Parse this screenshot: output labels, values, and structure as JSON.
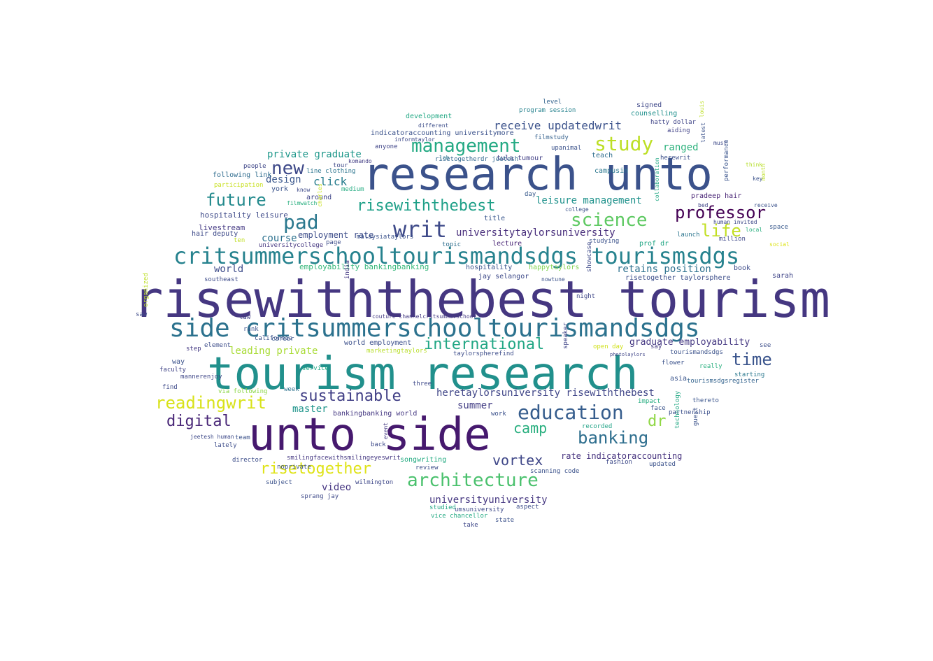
{
  "words": [
    {
      "text": "risewiththebest tourism",
      "size": 72,
      "color": "#453781",
      "vertical": false
    },
    {
      "text": "tourism research",
      "size": 64,
      "color": "#21908c",
      "vertical": false
    },
    {
      "text": "unto side",
      "size": 64,
      "color": "#46196e",
      "vertical": false
    },
    {
      "text": "research unto",
      "size": 64,
      "color": "#3b528b",
      "vertical": false
    },
    {
      "text": "side critsummerschooltourismandsdgs",
      "size": 36,
      "color": "#2c728e",
      "vertical": false
    },
    {
      "text": "critsummerschooltourismandsdgs tourismsdgs",
      "size": 32,
      "color": "#26828e",
      "vertical": false
    },
    {
      "text": "writ",
      "size": 32,
      "color": "#3e4a89",
      "vertical": false
    },
    {
      "text": "management",
      "size": 26,
      "color": "#23a983",
      "vertical": false
    },
    {
      "text": "study",
      "size": 28,
      "color": "#bddf26",
      "vertical": false
    },
    {
      "text": "new",
      "size": 26,
      "color": "#3e4989",
      "vertical": false
    },
    {
      "text": "pad",
      "size": 28,
      "color": "#2a788e",
      "vertical": false
    },
    {
      "text": "future",
      "size": 24,
      "color": "#238a8d",
      "vertical": false
    },
    {
      "text": "risewiththebest",
      "size": 22,
      "color": "#1fa088",
      "vertical": false
    },
    {
      "text": "science",
      "size": 26,
      "color": "#5ec962",
      "vertical": false
    },
    {
      "text": "professor",
      "size": 24,
      "color": "#440154",
      "vertical": false
    },
    {
      "text": "life",
      "size": 24,
      "color": "#c2df23",
      "vertical": false
    },
    {
      "text": "education",
      "size": 28,
      "color": "#365d8d",
      "vertical": false
    },
    {
      "text": "sustainable",
      "size": 22,
      "color": "#424086",
      "vertical": false
    },
    {
      "text": "readingwrit",
      "size": 24,
      "color": "#d8e219",
      "vertical": false
    },
    {
      "text": "digital",
      "size": 22,
      "color": "#482677",
      "vertical": false
    },
    {
      "text": "international",
      "size": 22,
      "color": "#22a785",
      "vertical": false
    },
    {
      "text": "time",
      "size": 24,
      "color": "#3a548c",
      "vertical": false
    },
    {
      "text": "banking",
      "size": 24,
      "color": "#2e6e8e",
      "vertical": false
    },
    {
      "text": "camp",
      "size": 20,
      "color": "#29af7f",
      "vertical": false
    },
    {
      "text": "dr",
      "size": 22,
      "color": "#8fd744",
      "vertical": false
    },
    {
      "text": "vortex",
      "size": 20,
      "color": "#3f4788",
      "vertical": false
    },
    {
      "text": "architecture",
      "size": 26,
      "color": "#4ac16d",
      "vertical": false
    },
    {
      "text": "risetogether",
      "size": 22,
      "color": "#dfe318",
      "vertical": false
    },
    {
      "text": "receive updatedwrit",
      "size": 16,
      "color": "#3b528b",
      "vertical": false
    },
    {
      "text": "ranged",
      "size": 14,
      "color": "#2db27d",
      "vertical": false
    },
    {
      "text": "click",
      "size": 16,
      "color": "#287d8e",
      "vertical": false
    },
    {
      "text": "private graduate",
      "size": 14,
      "color": "#1f988b",
      "vertical": false
    },
    {
      "text": "design",
      "size": 14,
      "color": "#39568c",
      "vertical": false
    },
    {
      "text": "leisure management",
      "size": 14,
      "color": "#20928c",
      "vertical": false
    },
    {
      "text": "universitytaylorsuniversity",
      "size": 14,
      "color": "#472d7b",
      "vertical": false
    },
    {
      "text": "course",
      "size": 14,
      "color": "#2c718e",
      "vertical": false
    },
    {
      "text": "world",
      "size": 14,
      "color": "#3e4c8a",
      "vertical": false
    },
    {
      "text": "retains position",
      "size": 14,
      "color": "#2d708e",
      "vertical": false
    },
    {
      "text": "graduate employability",
      "size": 13,
      "color": "#453882",
      "vertical": false
    },
    {
      "text": "heretaylorsuniversity risewiththebest",
      "size": 14,
      "color": "#404688",
      "vertical": false
    },
    {
      "text": "leading private",
      "size": 14,
      "color": "#a8db34",
      "vertical": false
    },
    {
      "text": "master",
      "size": 14,
      "color": "#1f958b",
      "vertical": false
    },
    {
      "text": "summer",
      "size": 14,
      "color": "#433e85",
      "vertical": false
    },
    {
      "text": "rate indicatoraccounting",
      "size": 12,
      "color": "#46327e",
      "vertical": false
    },
    {
      "text": "universityuniversity",
      "size": 14,
      "color": "#453781",
      "vertical": false
    },
    {
      "text": "video",
      "size": 14,
      "color": "#453581",
      "vertical": false
    },
    {
      "text": "employability bankingbanking",
      "size": 11,
      "color": "#35b779",
      "vertical": false
    },
    {
      "text": "hospitality leisure",
      "size": 11,
      "color": "#3e4a89",
      "vertical": false
    },
    {
      "text": "employment rate",
      "size": 12,
      "color": "#3d4d8a",
      "vertical": false
    },
    {
      "text": "livestream",
      "size": 11,
      "color": "#443983",
      "vertical": false
    },
    {
      "text": "development",
      "size": 10,
      "color": "#22a884",
      "vertical": false
    },
    {
      "text": "indicatoraccounting universitymore",
      "size": 10,
      "color": "#3b528b",
      "vertical": false
    },
    {
      "text": "signed",
      "size": 10,
      "color": "#3f4889",
      "vertical": false
    },
    {
      "text": "counselling",
      "size": 10,
      "color": "#21908d",
      "vertical": false
    },
    {
      "text": "hatty dollar",
      "size": 9,
      "color": "#404588",
      "vertical": false
    },
    {
      "text": "aiding",
      "size": 9,
      "color": "#414287",
      "vertical": false
    },
    {
      "text": "program session",
      "size": 9,
      "color": "#26828e",
      "vertical": false
    },
    {
      "text": "level",
      "size": 9,
      "color": "#33638d",
      "vertical": false
    },
    {
      "text": "filmstudy",
      "size": 9,
      "color": "#34608d",
      "vertical": false
    },
    {
      "text": "teach",
      "size": 10,
      "color": "#2e6d8e",
      "vertical": false
    },
    {
      "text": "campusin",
      "size": 10,
      "color": "#2a778e",
      "vertical": false
    },
    {
      "text": "herewrit",
      "size": 9,
      "color": "#3c4f8a",
      "vertical": false
    },
    {
      "text": "pradeep hair",
      "size": 10,
      "color": "#482475",
      "vertical": false
    },
    {
      "text": "performance",
      "size": 9,
      "color": "#3a548c",
      "vertical": true
    },
    {
      "text": "tula tumour",
      "size": 10,
      "color": "#424086",
      "vertical": false
    },
    {
      "text": "upanimal",
      "size": 9,
      "color": "#3b528b",
      "vertical": false
    },
    {
      "text": "risetogetherdr jeetesh",
      "size": 9,
      "color": "#31668e",
      "vertical": false
    },
    {
      "text": "people",
      "size": 9,
      "color": "#3f4788",
      "vertical": false
    },
    {
      "text": "following link",
      "size": 10,
      "color": "#2f6c8e",
      "vertical": false
    },
    {
      "text": "participation",
      "size": 9,
      "color": "#c8e020",
      "vertical": false
    },
    {
      "text": "york",
      "size": 10,
      "color": "#3a538b",
      "vertical": false
    },
    {
      "text": "around",
      "size": 10,
      "color": "#404688",
      "vertical": false
    },
    {
      "text": "tour",
      "size": 9,
      "color": "#3e4989",
      "vertical": false
    },
    {
      "text": "line clothing",
      "size": 9,
      "color": "#2b748e",
      "vertical": false
    },
    {
      "text": "medium",
      "size": 9,
      "color": "#25ac82",
      "vertical": false
    },
    {
      "text": "komando",
      "size": 8,
      "color": "#433d84",
      "vertical": false
    },
    {
      "text": "anyone",
      "size": 9,
      "color": "#404588",
      "vertical": false
    },
    {
      "text": "day",
      "size": 9,
      "color": "#37598c",
      "vertical": false
    },
    {
      "text": "title",
      "size": 10,
      "color": "#39568c",
      "vertical": false
    },
    {
      "text": "lecture",
      "size": 10,
      "color": "#482475",
      "vertical": false
    },
    {
      "text": "topic",
      "size": 9,
      "color": "#2e6e8e",
      "vertical": false
    },
    {
      "text": "page",
      "size": 9,
      "color": "#3d4e8a",
      "vertical": false
    },
    {
      "text": "universitycollege",
      "size": 9,
      "color": "#453781",
      "vertical": false
    },
    {
      "text": "hair deputy",
      "size": 10,
      "color": "#3e4a89",
      "vertical": false
    },
    {
      "text": "ten",
      "size": 9,
      "color": "#c0df25",
      "vertical": false
    },
    {
      "text": "hospitality",
      "size": 10,
      "color": "#3a548c",
      "vertical": false
    },
    {
      "text": "happytaylors",
      "size": 10,
      "color": "#7fd34e",
      "vertical": false
    },
    {
      "text": "jay selangor",
      "size": 10,
      "color": "#3e4a89",
      "vertical": false
    },
    {
      "text": "prof dr",
      "size": 10,
      "color": "#22a785",
      "vertical": false
    },
    {
      "text": "launch",
      "size": 9,
      "color": "#2b758e",
      "vertical": false
    },
    {
      "text": "million",
      "size": 9,
      "color": "#3f4889",
      "vertical": false
    },
    {
      "text": "space",
      "size": 9,
      "color": "#38598c",
      "vertical": false
    },
    {
      "text": "social",
      "size": 8,
      "color": "#dde318",
      "vertical": false
    },
    {
      "text": "book",
      "size": 10,
      "color": "#3e4c8a",
      "vertical": false
    },
    {
      "text": "sarah",
      "size": 10,
      "color": "#404688",
      "vertical": false
    },
    {
      "text": "risetogether taylorsphere",
      "size": 10,
      "color": "#3d4e8a",
      "vertical": false
    },
    {
      "text": "southeast",
      "size": 9,
      "color": "#3e4c8a",
      "vertical": false
    },
    {
      "text": "law",
      "size": 9,
      "color": "#414487",
      "vertical": false
    },
    {
      "text": "california",
      "size": 9,
      "color": "#3b528b",
      "vertical": false
    },
    {
      "text": "rank",
      "size": 9,
      "color": "#3a538b",
      "vertical": false
    },
    {
      "text": "career",
      "size": 9,
      "color": "#39558c",
      "vertical": false
    },
    {
      "text": "couture channelcritsummerschool",
      "size": 8,
      "color": "#443a83",
      "vertical": false
    },
    {
      "text": "world employment",
      "size": 10,
      "color": "#3c508b",
      "vertical": false
    },
    {
      "text": "marketingtaylors",
      "size": 9,
      "color": "#b8de29",
      "vertical": false
    },
    {
      "text": "taylorspherefind",
      "size": 9,
      "color": "#3d4d8a",
      "vertical": false
    },
    {
      "text": "open day",
      "size": 9,
      "color": "#d0e11c",
      "vertical": false
    },
    {
      "text": "photolaylors",
      "size": 7,
      "color": "#404588",
      "vertical": false
    },
    {
      "text": "see",
      "size": 9,
      "color": "#3d4e8a",
      "vertical": false
    },
    {
      "text": "really",
      "size": 9,
      "color": "#29af7f",
      "vertical": false
    },
    {
      "text": "starting",
      "size": 9,
      "color": "#2a788e",
      "vertical": false
    },
    {
      "text": "asia",
      "size": 10,
      "color": "#3a548c",
      "vertical": false
    },
    {
      "text": "tourismsdgsregister",
      "size": 9,
      "color": "#33638d",
      "vertical": false
    },
    {
      "text": "flower",
      "size": 9,
      "color": "#3b528b",
      "vertical": false
    },
    {
      "text": "say",
      "size": 9,
      "color": "#443a83",
      "vertical": false
    },
    {
      "text": "tourismandsdgs",
      "size": 9,
      "color": "#3b528b",
      "vertical": false
    },
    {
      "text": "element",
      "size": 9,
      "color": "#3d4d8a",
      "vertical": false
    },
    {
      "text": "step",
      "size": 9,
      "color": "#443983",
      "vertical": false
    },
    {
      "text": "way",
      "size": 10,
      "color": "#3b528b",
      "vertical": false
    },
    {
      "text": "faculty",
      "size": 9,
      "color": "#414487",
      "vertical": false
    },
    {
      "text": "mannerenjoy",
      "size": 9,
      "color": "#3f4788",
      "vertical": false
    },
    {
      "text": "find",
      "size": 9,
      "color": "#3e4a89",
      "vertical": false
    },
    {
      "text": "via following",
      "size": 9,
      "color": "#8bd646",
      "vertical": false
    },
    {
      "text": "week",
      "size": 9,
      "color": "#2c728e",
      "vertical": false
    },
    {
      "text": "service",
      "size": 9,
      "color": "#22a884",
      "vertical": false
    },
    {
      "text": "three",
      "size": 9,
      "color": "#3e4989",
      "vertical": false
    },
    {
      "text": "bankingbanking world",
      "size": 10,
      "color": "#453882",
      "vertical": false
    },
    {
      "text": "work",
      "size": 9,
      "color": "#3b518b",
      "vertical": false
    },
    {
      "text": "recorded",
      "size": 9,
      "color": "#20a386",
      "vertical": false
    },
    {
      "text": "impact",
      "size": 9,
      "color": "#26ad81",
      "vertical": false
    },
    {
      "text": "face",
      "size": 9,
      "color": "#3a548c",
      "vertical": false
    },
    {
      "text": "partnership",
      "size": 9,
      "color": "#3c508b",
      "vertical": false
    },
    {
      "text": "thereto",
      "size": 9,
      "color": "#3a548c",
      "vertical": false
    },
    {
      "text": "guest",
      "size": 9,
      "color": "#3b528b",
      "vertical": true
    },
    {
      "text": "technology",
      "size": 9,
      "color": "#22a884",
      "vertical": true
    },
    {
      "text": "team",
      "size": 9,
      "color": "#3b528b",
      "vertical": false
    },
    {
      "text": "jeetesh human",
      "size": 8,
      "color": "#3e4a89",
      "vertical": false
    },
    {
      "text": "lately",
      "size": 9,
      "color": "#3d4d8a",
      "vertical": false
    },
    {
      "text": "director",
      "size": 9,
      "color": "#3d4e8a",
      "vertical": false
    },
    {
      "text": "back",
      "size": 9,
      "color": "#3e4a89",
      "vertical": false
    },
    {
      "text": "event",
      "size": 8,
      "color": "#443983",
      "vertical": true
    },
    {
      "text": "smilingfacewithsmilingeyeswrit",
      "size": 9,
      "color": "#453882",
      "vertical": false
    },
    {
      "text": "noprivate",
      "size": 9,
      "color": "#3b528b",
      "vertical": false
    },
    {
      "text": "songwriting",
      "size": 10,
      "color": "#25ab82",
      "vertical": false
    },
    {
      "text": "wilmington",
      "size": 9,
      "color": "#3f4889",
      "vertical": false
    },
    {
      "text": "review",
      "size": 9,
      "color": "#3d4e8a",
      "vertical": false
    },
    {
      "text": "studied",
      "size": 9,
      "color": "#22a785",
      "vertical": false
    },
    {
      "text": "umsuniversity",
      "size": 9,
      "color": "#3e4989",
      "vertical": false
    },
    {
      "text": "vice chancellor",
      "size": 9,
      "color": "#24aa83",
      "vertical": false
    },
    {
      "text": "take",
      "size": 9,
      "color": "#3f4889",
      "vertical": false
    },
    {
      "text": "state",
      "size": 9,
      "color": "#3b528b",
      "vertical": false
    },
    {
      "text": "aspect",
      "size": 9,
      "color": "#3d4d8a",
      "vertical": false
    },
    {
      "text": "scanning code",
      "size": 9,
      "color": "#3b528b",
      "vertical": false
    },
    {
      "text": "fashion",
      "size": 9,
      "color": "#3e4a89",
      "vertical": false
    },
    {
      "text": "updated",
      "size": 9,
      "color": "#3b528b",
      "vertical": false
    },
    {
      "text": "subject",
      "size": 9,
      "color": "#3b528b",
      "vertical": false
    },
    {
      "text": "sprang jay",
      "size": 9,
      "color": "#3e4989",
      "vertical": false
    },
    {
      "text": "nowtune",
      "size": 8,
      "color": "#3b528b",
      "vertical": false
    },
    {
      "text": "night",
      "size": 9,
      "color": "#3f4788",
      "vertical": false
    },
    {
      "text": "studying",
      "size": 9,
      "color": "#3b528b",
      "vertical": false
    },
    {
      "text": "speaker",
      "size": 9,
      "color": "#404588",
      "vertical": true
    },
    {
      "text": "showcase",
      "size": 9,
      "color": "#3e4a89",
      "vertical": true
    },
    {
      "text": "malaysiataylors",
      "size": 9,
      "color": "#3b528b",
      "vertical": false
    },
    {
      "text": "india",
      "size": 9,
      "color": "#443983",
      "vertical": true
    },
    {
      "text": "informtaylor",
      "size": 8,
      "color": "#3e4989",
      "vertical": false
    },
    {
      "text": "different",
      "size": 8,
      "color": "#3d4e8a",
      "vertical": false
    },
    {
      "text": "lab",
      "size": 8,
      "color": "#2b748e",
      "vertical": false
    },
    {
      "text": "organized",
      "size": 9,
      "color": "#bddf26",
      "vertical": true
    },
    {
      "text": "saw",
      "size": 9,
      "color": "#3e4a89",
      "vertical": false
    },
    {
      "text": "collaboration",
      "size": 8,
      "color": "#22a884",
      "vertical": true
    },
    {
      "text": "latest",
      "size": 8,
      "color": "#3b528b",
      "vertical": true
    },
    {
      "text": "must",
      "size": 8,
      "color": "#3e4a89",
      "vertical": false
    },
    {
      "text": "think",
      "size": 8,
      "color": "#b5de2b",
      "vertical": false
    },
    {
      "text": "key",
      "size": 8,
      "color": "#3b528b",
      "vertical": false
    },
    {
      "text": "receive",
      "size": 8,
      "color": "#3b528b",
      "vertical": false
    },
    {
      "text": "human invited",
      "size": 8,
      "color": "#3e4989",
      "vertical": false
    },
    {
      "text": "local",
      "size": 8,
      "color": "#29af7f",
      "vertical": false
    },
    {
      "text": "bed",
      "size": 8,
      "color": "#404588",
      "vertical": false
    },
    {
      "text": "college",
      "size": 8,
      "color": "#3b528b",
      "vertical": false
    },
    {
      "text": "month",
      "size": 8,
      "color": "#bddf26",
      "vertical": true
    },
    {
      "text": "louis",
      "size": 8,
      "color": "#bddf26",
      "vertical": true
    },
    {
      "text": "filmwatch",
      "size": 8,
      "color": "#29af7f",
      "vertical": false
    },
    {
      "text": "know",
      "size": 8,
      "color": "#3e4a89",
      "vertical": false
    },
    {
      "text": "charles",
      "size": 8,
      "color": "#c8e020",
      "vertical": true
    }
  ]
}
